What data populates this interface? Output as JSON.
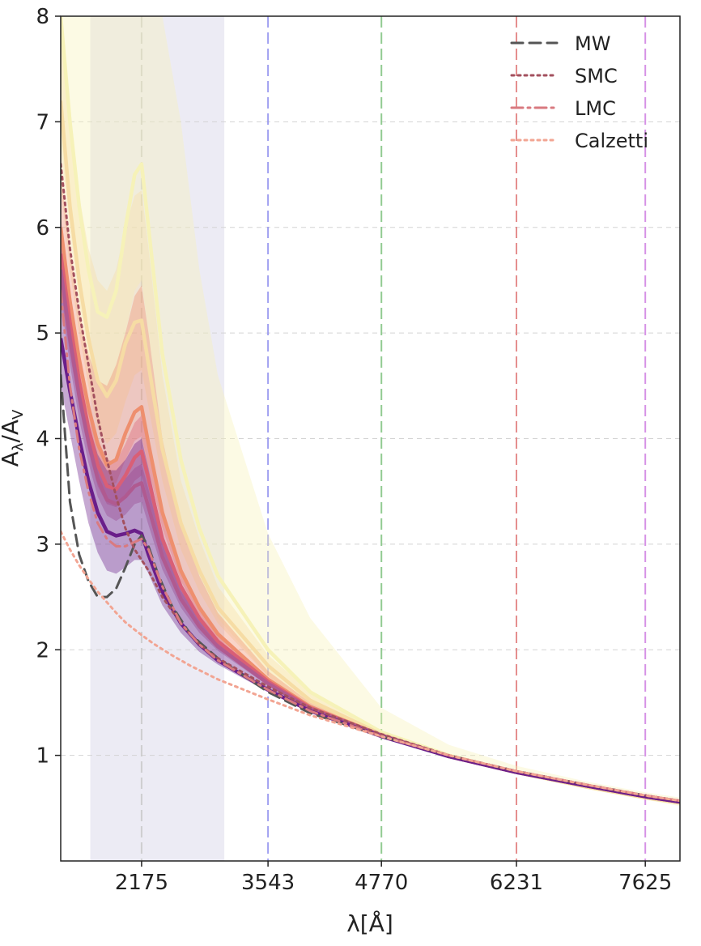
{
  "chart_data": {
    "type": "line",
    "title": "",
    "xlabel": "λ[Å]",
    "ylabel": "A_λ/A_V",
    "xlim": [
      1300,
      8000
    ],
    "ylim": [
      0,
      8
    ],
    "x_ticks": [
      2175,
      3543,
      4770,
      6231,
      7625
    ],
    "x_tick_labels": [
      "2175",
      "3543",
      "4770",
      "6231",
      "7625"
    ],
    "y_ticks": [
      1,
      2,
      3,
      4,
      5,
      6,
      7,
      8
    ],
    "y_tick_labels": [
      "1",
      "2",
      "3",
      "4",
      "5",
      "6",
      "7",
      "8"
    ],
    "grid": true,
    "legend": {
      "placement": "top-right"
    },
    "shaded_region": {
      "x": [
        1620,
        3070
      ],
      "color": "#e4e3f0"
    },
    "vertical_lines": [
      {
        "x": 2175,
        "color": "#c9c9c9"
      },
      {
        "x": 3543,
        "color": "#8f8fee"
      },
      {
        "x": 4770,
        "color": "#7fc27f"
      },
      {
        "x": 6231,
        "color": "#e07a7a"
      },
      {
        "x": 7625,
        "color": "#cf7fe0"
      }
    ],
    "reference_series": [
      {
        "name": "MW",
        "style": "dashed",
        "color": "#555555",
        "x": [
          1300,
          1400,
          1500,
          1600,
          1700,
          1800,
          1900,
          2000,
          2100,
          2175,
          2250,
          2350,
          2500,
          2700,
          3000,
          3543,
          4000,
          4770,
          5500,
          6231,
          7000,
          7625,
          8000
        ],
        "y": [
          4.6,
          3.4,
          2.9,
          2.65,
          2.5,
          2.5,
          2.58,
          2.78,
          3.0,
          3.08,
          2.98,
          2.72,
          2.42,
          2.15,
          1.92,
          1.6,
          1.4,
          1.18,
          1.0,
          0.85,
          0.72,
          0.62,
          0.57
        ]
      },
      {
        "name": "SMC",
        "style": "dotted",
        "color": "#a3505e",
        "x": [
          1300,
          1400,
          1500,
          1600,
          1700,
          1800,
          1900,
          2000,
          2100,
          2175,
          2250,
          2400,
          2600,
          2800,
          3000,
          3543,
          4000,
          4770,
          5500,
          6231,
          7000,
          7625,
          8000
        ],
        "y": [
          6.6,
          5.8,
          5.2,
          4.7,
          4.2,
          3.8,
          3.45,
          3.15,
          2.95,
          2.85,
          2.75,
          2.5,
          2.25,
          2.05,
          1.92,
          1.65,
          1.45,
          1.2,
          1.0,
          0.85,
          0.72,
          0.62,
          0.57
        ]
      },
      {
        "name": "LMC",
        "style": "dashdot",
        "color": "#d97a80",
        "x": [
          1300,
          1400,
          1500,
          1600,
          1700,
          1800,
          1900,
          2000,
          2100,
          2175,
          2250,
          2400,
          2600,
          2800,
          3000,
          3543,
          4000,
          4770,
          5500,
          6231,
          7000,
          7625,
          8000
        ],
        "y": [
          5.4,
          4.5,
          3.9,
          3.5,
          3.2,
          3.05,
          2.98,
          2.98,
          3.02,
          3.05,
          2.95,
          2.6,
          2.25,
          2.05,
          1.9,
          1.62,
          1.42,
          1.18,
          1.0,
          0.85,
          0.72,
          0.62,
          0.57
        ]
      },
      {
        "name": "Calzetti",
        "style": "dotted",
        "color": "#f2a593",
        "x": [
          1300,
          1400,
          1500,
          1600,
          1700,
          1800,
          1900,
          2000,
          2100,
          2175,
          2300,
          2500,
          2700,
          3000,
          3543,
          4000,
          4770,
          5500,
          6231,
          7000,
          7625,
          8000
        ],
        "y": [
          3.12,
          2.95,
          2.8,
          2.67,
          2.55,
          2.45,
          2.35,
          2.26,
          2.19,
          2.14,
          2.06,
          1.95,
          1.85,
          1.72,
          1.53,
          1.38,
          1.18,
          1.0,
          0.85,
          0.72,
          0.62,
          0.57
        ]
      }
    ],
    "band_x": [
      1300,
      1400,
      1500,
      1600,
      1700,
      1800,
      1900,
      2000,
      2100,
      2175,
      2250,
      2400,
      2600,
      2800,
      3000,
      3543,
      4000,
      4770,
      5500,
      6231,
      7000,
      7625,
      8000
    ],
    "bands": [
      {
        "color": "#f6f2b8",
        "mid": [
          8.0,
          7.0,
          6.2,
          5.6,
          5.2,
          5.15,
          5.4,
          6.0,
          6.5,
          6.6,
          6.0,
          4.8,
          3.8,
          3.15,
          2.7,
          2.0,
          1.6,
          1.22,
          1.0,
          0.84,
          0.7,
          0.6,
          0.55
        ],
        "lower": [
          6.8,
          6.0,
          5.3,
          4.8,
          4.5,
          4.4,
          4.6,
          5.0,
          5.4,
          5.5,
          5.0,
          4.0,
          3.2,
          2.7,
          2.3,
          1.75,
          1.45,
          1.17,
          0.98,
          0.82,
          0.68,
          0.58,
          0.52
        ],
        "upper": [
          9.5,
          9.0,
          8.6,
          8.4,
          8.3,
          8.3,
          8.4,
          8.6,
          8.8,
          8.9,
          8.8,
          8.4,
          7.0,
          5.6,
          4.6,
          3.1,
          2.3,
          1.45,
          1.1,
          0.9,
          0.75,
          0.65,
          0.6
        ]
      },
      {
        "color": "#f6dca4",
        "mid": [
          7.2,
          6.2,
          5.5,
          4.95,
          4.55,
          4.4,
          4.55,
          4.9,
          5.1,
          5.12,
          4.7,
          3.9,
          3.2,
          2.75,
          2.4,
          1.85,
          1.52,
          1.2,
          0.99,
          0.84,
          0.7,
          0.6,
          0.55
        ],
        "lower": [
          6.4,
          5.6,
          5.0,
          4.5,
          4.1,
          3.95,
          4.05,
          4.35,
          4.6,
          4.65,
          4.3,
          3.6,
          2.95,
          2.55,
          2.25,
          1.75,
          1.46,
          1.18,
          0.98,
          0.83,
          0.7,
          0.6,
          0.55
        ],
        "upper": [
          8.0,
          7.0,
          6.3,
          5.8,
          5.5,
          5.4,
          5.6,
          6.0,
          6.3,
          6.35,
          5.8,
          4.6,
          3.6,
          3.05,
          2.6,
          1.95,
          1.6,
          1.23,
          1.01,
          0.86,
          0.72,
          0.62,
          0.57
        ]
      },
      {
        "color": "#ee8f6e",
        "mid": [
          6.0,
          5.3,
          4.75,
          4.3,
          3.95,
          3.75,
          3.8,
          4.05,
          4.25,
          4.3,
          3.95,
          3.3,
          2.75,
          2.4,
          2.15,
          1.72,
          1.46,
          1.19,
          0.99,
          0.84,
          0.71,
          0.61,
          0.56
        ],
        "lower": [
          5.6,
          4.95,
          4.45,
          4.05,
          3.72,
          3.55,
          3.58,
          3.8,
          3.98,
          4.02,
          3.72,
          3.15,
          2.65,
          2.33,
          2.1,
          1.69,
          1.44,
          1.18,
          0.99,
          0.84,
          0.71,
          0.61,
          0.56
        ],
        "upper": [
          6.5,
          5.8,
          5.2,
          4.8,
          4.55,
          4.5,
          4.7,
          5.0,
          5.35,
          5.45,
          5.0,
          4.0,
          3.2,
          2.7,
          2.35,
          1.8,
          1.5,
          1.2,
          1.0,
          0.85,
          0.72,
          0.62,
          0.57
        ]
      },
      {
        "color": "#d95f76",
        "mid": [
          5.75,
          5.1,
          4.55,
          4.1,
          3.75,
          3.55,
          3.52,
          3.65,
          3.82,
          3.88,
          3.62,
          3.05,
          2.6,
          2.3,
          2.08,
          1.7,
          1.45,
          1.19,
          0.99,
          0.84,
          0.71,
          0.61,
          0.56
        ],
        "lower": [
          5.4,
          4.8,
          4.3,
          3.88,
          3.55,
          3.38,
          3.35,
          3.45,
          3.6,
          3.65,
          3.42,
          2.92,
          2.5,
          2.23,
          2.03,
          1.68,
          1.44,
          1.19,
          0.99,
          0.84,
          0.71,
          0.61,
          0.56
        ],
        "upper": [
          6.1,
          5.4,
          4.8,
          4.35,
          4.0,
          3.8,
          3.78,
          3.95,
          4.15,
          4.22,
          3.9,
          3.25,
          2.75,
          2.42,
          2.17,
          1.74,
          1.47,
          1.2,
          1.0,
          0.85,
          0.72,
          0.62,
          0.57
        ]
      },
      {
        "color": "#b05a90",
        "mid": [
          5.6,
          4.95,
          4.4,
          3.97,
          3.62,
          3.42,
          3.38,
          3.45,
          3.55,
          3.58,
          3.35,
          2.88,
          2.48,
          2.22,
          2.03,
          1.68,
          1.44,
          1.19,
          0.99,
          0.84,
          0.71,
          0.61,
          0.56
        ],
        "lower": [
          5.3,
          4.7,
          4.18,
          3.77,
          3.45,
          3.27,
          3.22,
          3.28,
          3.38,
          3.4,
          3.18,
          2.76,
          2.4,
          2.16,
          1.99,
          1.66,
          1.43,
          1.18,
          0.99,
          0.84,
          0.71,
          0.61,
          0.56
        ],
        "upper": [
          5.9,
          5.2,
          4.62,
          4.17,
          3.8,
          3.58,
          3.54,
          3.62,
          3.72,
          3.76,
          3.52,
          3.0,
          2.56,
          2.28,
          2.07,
          1.7,
          1.46,
          1.2,
          1.0,
          0.85,
          0.72,
          0.62,
          0.57
        ]
      },
      {
        "color": "#6a1e8a",
        "mid": [
          4.95,
          4.45,
          4.0,
          3.6,
          3.3,
          3.12,
          3.08,
          3.1,
          3.13,
          3.1,
          2.9,
          2.55,
          2.25,
          2.05,
          1.9,
          1.62,
          1.42,
          1.18,
          0.99,
          0.84,
          0.71,
          0.61,
          0.56
        ],
        "lower": [
          4.5,
          4.05,
          3.6,
          3.2,
          2.92,
          2.75,
          2.72,
          2.78,
          2.85,
          2.85,
          2.72,
          2.42,
          2.16,
          1.98,
          1.86,
          1.6,
          1.41,
          1.18,
          0.99,
          0.84,
          0.71,
          0.61,
          0.56
        ],
        "upper": [
          5.5,
          5.0,
          4.55,
          4.15,
          3.85,
          3.7,
          3.7,
          3.8,
          3.95,
          4.0,
          3.72,
          3.1,
          2.6,
          2.3,
          2.1,
          1.72,
          1.48,
          1.2,
          1.0,
          0.85,
          0.72,
          0.62,
          0.57
        ]
      }
    ]
  }
}
